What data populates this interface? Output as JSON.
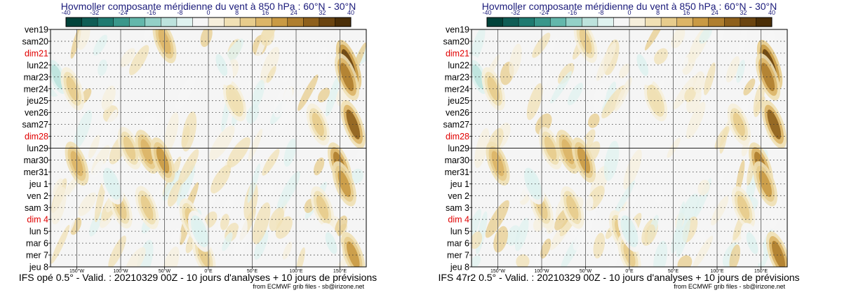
{
  "chart_data": [
    {
      "type": "heatmap",
      "title": "Hovmoller composante méridienne du vent à 850 hPa : 60°N - 30°N",
      "model_label": "IFS opé 0.5° - Valid. : 20210329 00Z - 10 jours d'analyses + 10 jours de prévisions",
      "credit": "from ECMWF grib files - sb@irizone.net",
      "colorbar": {
        "ticks": [
          "-40",
          "-32",
          "-24",
          "-16",
          "-8",
          "0",
          "8",
          "16",
          "24",
          "32",
          "40"
        ],
        "colors": [
          "#01433a",
          "#0f5d55",
          "#1f7a70",
          "#3a978b",
          "#63b7ab",
          "#93d0c7",
          "#bde3dd",
          "#dff2ef",
          "#f5f5f5",
          "#f6efdc",
          "#f0e0b4",
          "#e7cc8c",
          "#dcb567",
          "#c99a44",
          "#af7e2e",
          "#8e601c",
          "#6a4410",
          "#4a2e07"
        ]
      },
      "y_dates": [
        {
          "label": "ven19",
          "weekend": false
        },
        {
          "label": "sam20",
          "weekend": false
        },
        {
          "label": "dim21",
          "weekend": true
        },
        {
          "label": "lun22",
          "weekend": false
        },
        {
          "label": "mar23",
          "weekend": false
        },
        {
          "label": "mer24",
          "weekend": false
        },
        {
          "label": "jeu25",
          "weekend": false
        },
        {
          "label": "ven26",
          "weekend": false
        },
        {
          "label": "sam27",
          "weekend": false
        },
        {
          "label": "dim28",
          "weekend": true
        },
        {
          "label": "lun29",
          "weekend": false
        },
        {
          "label": "mar30",
          "weekend": false
        },
        {
          "label": "mer31",
          "weekend": false
        },
        {
          "label": "jeu 1",
          "weekend": false
        },
        {
          "label": "ven 2",
          "weekend": false
        },
        {
          "label": "sam 3",
          "weekend": false
        },
        {
          "label": "dim 4",
          "weekend": true
        },
        {
          "label": "lun 5",
          "weekend": false
        },
        {
          "label": "mar 6",
          "weekend": false
        },
        {
          "label": "mer 7",
          "weekend": false
        },
        {
          "label": "jeu 8",
          "weekend": false
        }
      ],
      "analysis_date": "lun29",
      "x_range": [
        -180,
        180
      ],
      "x_ticks": [
        {
          "value": -150,
          "label": "150°W"
        },
        {
          "value": -100,
          "label": "100°W"
        },
        {
          "value": -50,
          "label": "50°W"
        },
        {
          "value": 0,
          "label": "0°E"
        },
        {
          "value": 50,
          "label": "50°E"
        },
        {
          "value": 100,
          "label": "100°E"
        },
        {
          "value": 150,
          "label": "150°E"
        }
      ],
      "features": [
        {
          "lon": 160,
          "day": 3,
          "v": 36
        },
        {
          "lon": 158,
          "day": 4,
          "v": 26
        },
        {
          "lon": 165,
          "day": 8,
          "v": 30
        },
        {
          "lon": 150,
          "day": 11.5,
          "v": 26
        },
        {
          "lon": 155,
          "day": 13,
          "v": 20
        },
        {
          "lon": 165,
          "day": 19,
          "v": 22
        },
        {
          "lon": -172,
          "day": 4,
          "v": -14
        },
        {
          "lon": -155,
          "day": 5,
          "v": 14
        },
        {
          "lon": -150,
          "day": 11.3,
          "v": 16
        },
        {
          "lon": -50,
          "day": 1,
          "v": 16
        },
        {
          "lon": -90,
          "day": 10,
          "v": 12
        },
        {
          "lon": -70,
          "day": 10.3,
          "v": 16
        },
        {
          "lon": -52,
          "day": 11,
          "v": 20
        },
        {
          "lon": -100,
          "day": 15,
          "v": 10
        },
        {
          "lon": -70,
          "day": 15,
          "v": 14
        },
        {
          "lon": -5,
          "day": 19,
          "v": 12
        },
        {
          "lon": -20,
          "day": 16,
          "v": 10
        },
        {
          "lon": 130,
          "day": 15,
          "v": 12
        },
        {
          "lon": 125,
          "day": 8,
          "v": 10
        },
        {
          "lon": -110,
          "day": 13,
          "v": -8
        },
        {
          "lon": -10,
          "day": 17,
          "v": -8
        },
        {
          "lon": 30,
          "day": 6,
          "v": 8
        },
        {
          "lon": 15,
          "day": 3,
          "v": -6
        },
        {
          "lon": 140,
          "day": 18,
          "v": -6
        }
      ]
    },
    {
      "type": "heatmap",
      "title": "Hovmoller composante méridienne du vent à 850 hPa : 60°N - 30°N",
      "model_label": "IFS 47r2 0.5° - Valid. : 20210329 00Z - 10 jours d'analyses + 10 jours de prévisions",
      "credit": "from ECMWF grib files - sb@irizone.net",
      "colorbar": {
        "ticks": [
          "-40",
          "-32",
          "-24",
          "-16",
          "-8",
          "0",
          "8",
          "16",
          "24",
          "32",
          "40"
        ],
        "colors": [
          "#01433a",
          "#0f5d55",
          "#1f7a70",
          "#3a978b",
          "#63b7ab",
          "#93d0c7",
          "#bde3dd",
          "#dff2ef",
          "#f5f5f5",
          "#f6efdc",
          "#f0e0b4",
          "#e7cc8c",
          "#dcb567",
          "#c99a44",
          "#af7e2e",
          "#8e601c",
          "#6a4410",
          "#4a2e07"
        ]
      },
      "y_dates": [
        {
          "label": "ven19",
          "weekend": false
        },
        {
          "label": "sam20",
          "weekend": false
        },
        {
          "label": "dim21",
          "weekend": true
        },
        {
          "label": "lun22",
          "weekend": false
        },
        {
          "label": "mar23",
          "weekend": false
        },
        {
          "label": "mer24",
          "weekend": false
        },
        {
          "label": "jeu25",
          "weekend": false
        },
        {
          "label": "ven26",
          "weekend": false
        },
        {
          "label": "sam27",
          "weekend": false
        },
        {
          "label": "dim28",
          "weekend": true
        },
        {
          "label": "lun29",
          "weekend": false
        },
        {
          "label": "mar30",
          "weekend": false
        },
        {
          "label": "mer31",
          "weekend": false
        },
        {
          "label": "jeu 1",
          "weekend": false
        },
        {
          "label": "ven 2",
          "weekend": false
        },
        {
          "label": "sam 3",
          "weekend": false
        },
        {
          "label": "dim 4",
          "weekend": true
        },
        {
          "label": "lun 5",
          "weekend": false
        },
        {
          "label": "mar 6",
          "weekend": false
        },
        {
          "label": "mer 7",
          "weekend": false
        },
        {
          "label": "jeu 8",
          "weekend": false
        }
      ],
      "analysis_date": "lun29",
      "x_range": [
        -180,
        180
      ],
      "x_ticks": [
        {
          "value": -150,
          "label": "150°W"
        },
        {
          "value": -100,
          "label": "100°W"
        },
        {
          "value": -50,
          "label": "50°W"
        },
        {
          "value": 0,
          "label": "0°E"
        },
        {
          "value": 50,
          "label": "50°E"
        },
        {
          "value": 100,
          "label": "100°E"
        },
        {
          "value": 150,
          "label": "150°E"
        }
      ],
      "features": [
        {
          "lon": 160,
          "day": 3,
          "v": 36
        },
        {
          "lon": 158,
          "day": 4,
          "v": 26
        },
        {
          "lon": 165,
          "day": 8,
          "v": 30
        },
        {
          "lon": 150,
          "day": 11.5,
          "v": 26
        },
        {
          "lon": 155,
          "day": 13,
          "v": 20
        },
        {
          "lon": 170,
          "day": 19,
          "v": 26
        },
        {
          "lon": -172,
          "day": 4,
          "v": -14
        },
        {
          "lon": -155,
          "day": 5,
          "v": 14
        },
        {
          "lon": -150,
          "day": 11.3,
          "v": 16
        },
        {
          "lon": -50,
          "day": 1,
          "v": 14
        },
        {
          "lon": -90,
          "day": 10,
          "v": 12
        },
        {
          "lon": -70,
          "day": 10.3,
          "v": 16
        },
        {
          "lon": -52,
          "day": 11,
          "v": 20
        },
        {
          "lon": -100,
          "day": 15,
          "v": 10
        },
        {
          "lon": -65,
          "day": 15,
          "v": 12
        },
        {
          "lon": -10,
          "day": 17,
          "v": 10
        },
        {
          "lon": 0,
          "day": 19,
          "v": 10
        },
        {
          "lon": 130,
          "day": 15,
          "v": 12
        },
        {
          "lon": 125,
          "day": 8,
          "v": 10
        },
        {
          "lon": -110,
          "day": 13,
          "v": -8
        },
        {
          "lon": 0,
          "day": 17,
          "v": -8
        },
        {
          "lon": 30,
          "day": 6,
          "v": 8
        },
        {
          "lon": 15,
          "day": 3,
          "v": -6
        },
        {
          "lon": 140,
          "day": 18,
          "v": -6
        }
      ]
    }
  ]
}
